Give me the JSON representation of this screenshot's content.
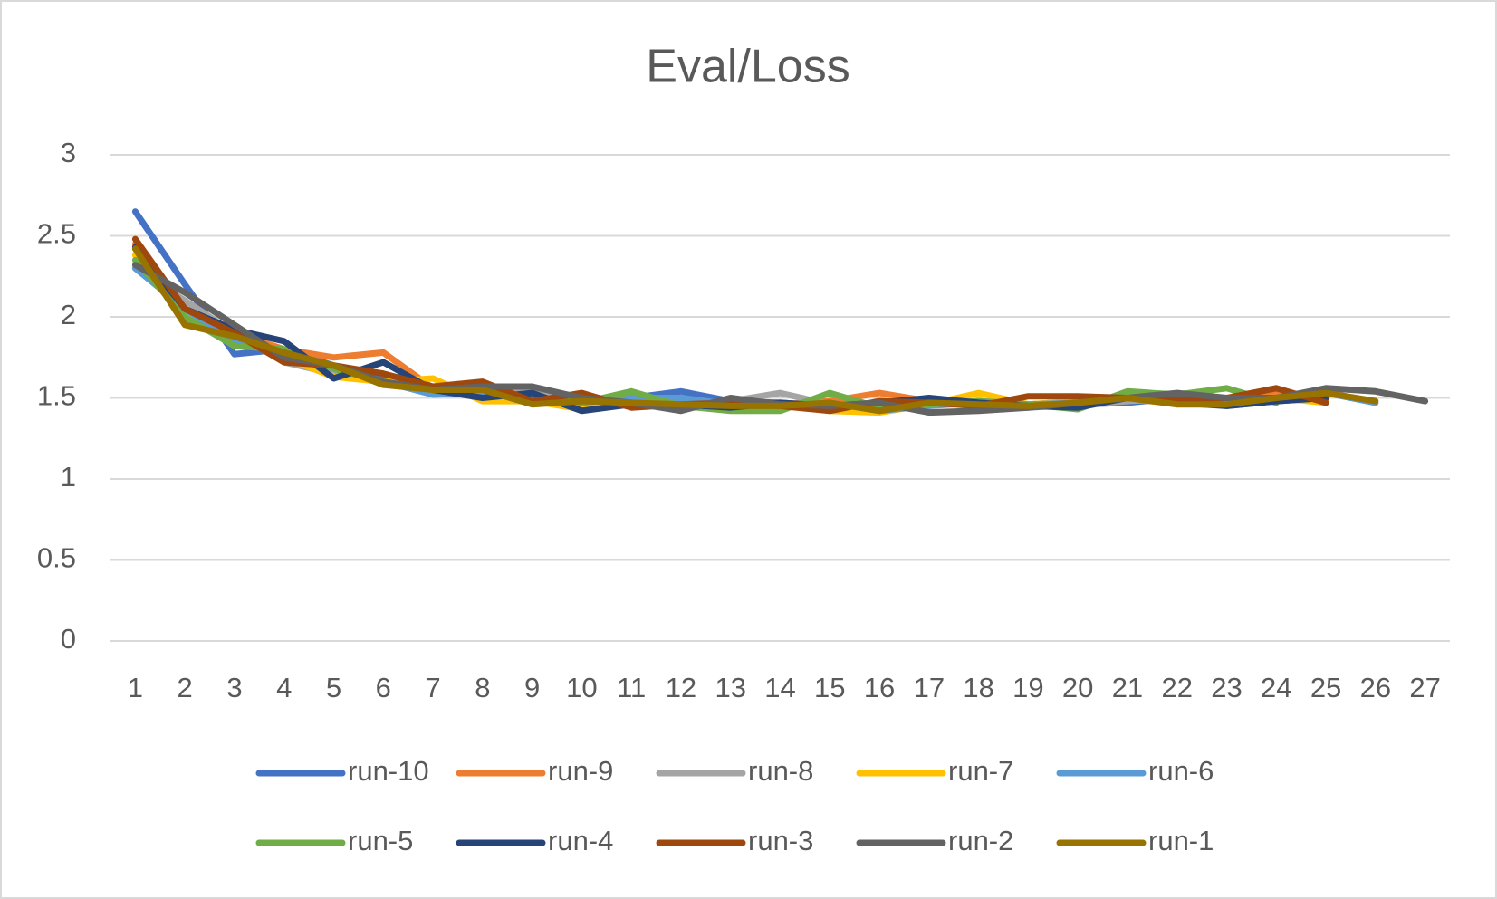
{
  "chart_data": {
    "type": "line",
    "title": "Eval/Loss",
    "categories": [
      1,
      2,
      3,
      4,
      5,
      6,
      7,
      8,
      9,
      10,
      11,
      12,
      13,
      14,
      15,
      16,
      17,
      18,
      19,
      20,
      21,
      22,
      23,
      24,
      25,
      26,
      27
    ],
    "ylim": [
      0,
      3
    ],
    "yticks": [
      0,
      0.5,
      1,
      1.5,
      2,
      2.5,
      3
    ],
    "grid": true,
    "legend": "bottom",
    "series": [
      {
        "name": "run-10",
        "color": "#4472c4",
        "values": [
          2.65,
          2.2,
          1.77,
          1.8,
          1.7,
          1.62,
          1.55,
          1.52,
          1.5,
          1.47,
          1.5,
          1.54,
          1.48,
          1.47,
          1.45,
          1.44,
          1.47,
          1.46,
          1.44,
          1.46,
          1.47,
          1.5,
          1.45,
          1.48,
          1.5,
          null,
          null
        ]
      },
      {
        "name": "run-9",
        "color": "#ed7d31",
        "values": [
          2.45,
          2.0,
          1.9,
          1.8,
          1.75,
          1.78,
          1.56,
          1.5,
          1.48,
          1.47,
          1.46,
          1.45,
          1.44,
          1.46,
          1.48,
          1.53,
          1.48,
          1.47,
          1.46,
          1.48,
          1.49,
          1.47,
          1.5,
          1.52,
          1.48,
          null,
          null
        ]
      },
      {
        "name": "run-8",
        "color": "#a5a5a5",
        "values": [
          2.3,
          2.1,
          1.9,
          1.72,
          1.65,
          1.6,
          1.55,
          1.57,
          1.55,
          1.5,
          1.48,
          1.46,
          1.48,
          1.53,
          1.46,
          1.44,
          1.45,
          1.47,
          1.45,
          1.46,
          1.48,
          1.5,
          1.48,
          1.5,
          1.52,
          null,
          null
        ]
      },
      {
        "name": "run-7",
        "color": "#ffc000",
        "values": [
          2.38,
          2.0,
          1.88,
          1.75,
          1.63,
          1.6,
          1.62,
          1.48,
          1.48,
          1.43,
          1.47,
          1.45,
          1.44,
          1.46,
          1.42,
          1.41,
          1.46,
          1.53,
          1.46,
          1.48,
          1.5,
          1.47,
          1.48,
          1.5,
          1.47,
          null,
          null
        ]
      },
      {
        "name": "run-6",
        "color": "#5b9bd5",
        "values": [
          2.3,
          2.05,
          1.85,
          1.78,
          1.7,
          1.6,
          1.52,
          1.53,
          1.5,
          1.47,
          1.5,
          1.5,
          1.46,
          1.45,
          1.47,
          1.42,
          1.45,
          1.48,
          1.46,
          1.47,
          1.5,
          1.48,
          1.46,
          1.5,
          1.53,
          1.47,
          null
        ]
      },
      {
        "name": "run-5",
        "color": "#70ad47",
        "values": [
          2.35,
          2.0,
          1.82,
          1.8,
          1.68,
          1.6,
          1.55,
          1.56,
          1.5,
          1.47,
          1.54,
          1.45,
          1.42,
          1.42,
          1.53,
          1.44,
          1.46,
          1.48,
          1.46,
          1.43,
          1.54,
          1.52,
          1.56,
          1.47,
          null,
          null,
          null
        ]
      },
      {
        "name": "run-4",
        "color": "#264478",
        "values": [
          2.43,
          2.05,
          1.92,
          1.85,
          1.62,
          1.72,
          1.55,
          1.5,
          1.53,
          1.42,
          1.46,
          1.46,
          1.44,
          1.47,
          1.45,
          1.47,
          1.5,
          1.47,
          1.45,
          1.44,
          1.5,
          1.47,
          1.45,
          1.48,
          1.5,
          null,
          null
        ]
      },
      {
        "name": "run-3",
        "color": "#9e480e",
        "values": [
          2.48,
          2.05,
          1.9,
          1.72,
          1.7,
          1.65,
          1.57,
          1.6,
          1.48,
          1.53,
          1.44,
          1.46,
          1.47,
          1.45,
          1.42,
          1.48,
          1.47,
          1.45,
          1.51,
          1.51,
          1.5,
          1.49,
          1.5,
          1.56,
          1.47,
          null,
          null
        ]
      },
      {
        "name": "run-2",
        "color": "#636363",
        "values": [
          2.32,
          2.15,
          1.95,
          1.75,
          1.7,
          1.6,
          1.55,
          1.57,
          1.57,
          1.5,
          1.47,
          1.42,
          1.5,
          1.46,
          1.45,
          1.47,
          1.41,
          1.42,
          1.44,
          1.47,
          1.5,
          1.53,
          1.5,
          1.5,
          1.56,
          1.54,
          1.48
        ]
      },
      {
        "name": "run-1",
        "color": "#997300",
        "values": [
          2.42,
          1.95,
          1.88,
          1.78,
          1.7,
          1.58,
          1.55,
          1.55,
          1.46,
          1.48,
          1.47,
          1.46,
          1.45,
          1.45,
          1.47,
          1.42,
          1.47,
          1.46,
          1.45,
          1.47,
          1.5,
          1.46,
          1.46,
          1.5,
          1.53,
          1.48,
          null
        ]
      }
    ]
  }
}
